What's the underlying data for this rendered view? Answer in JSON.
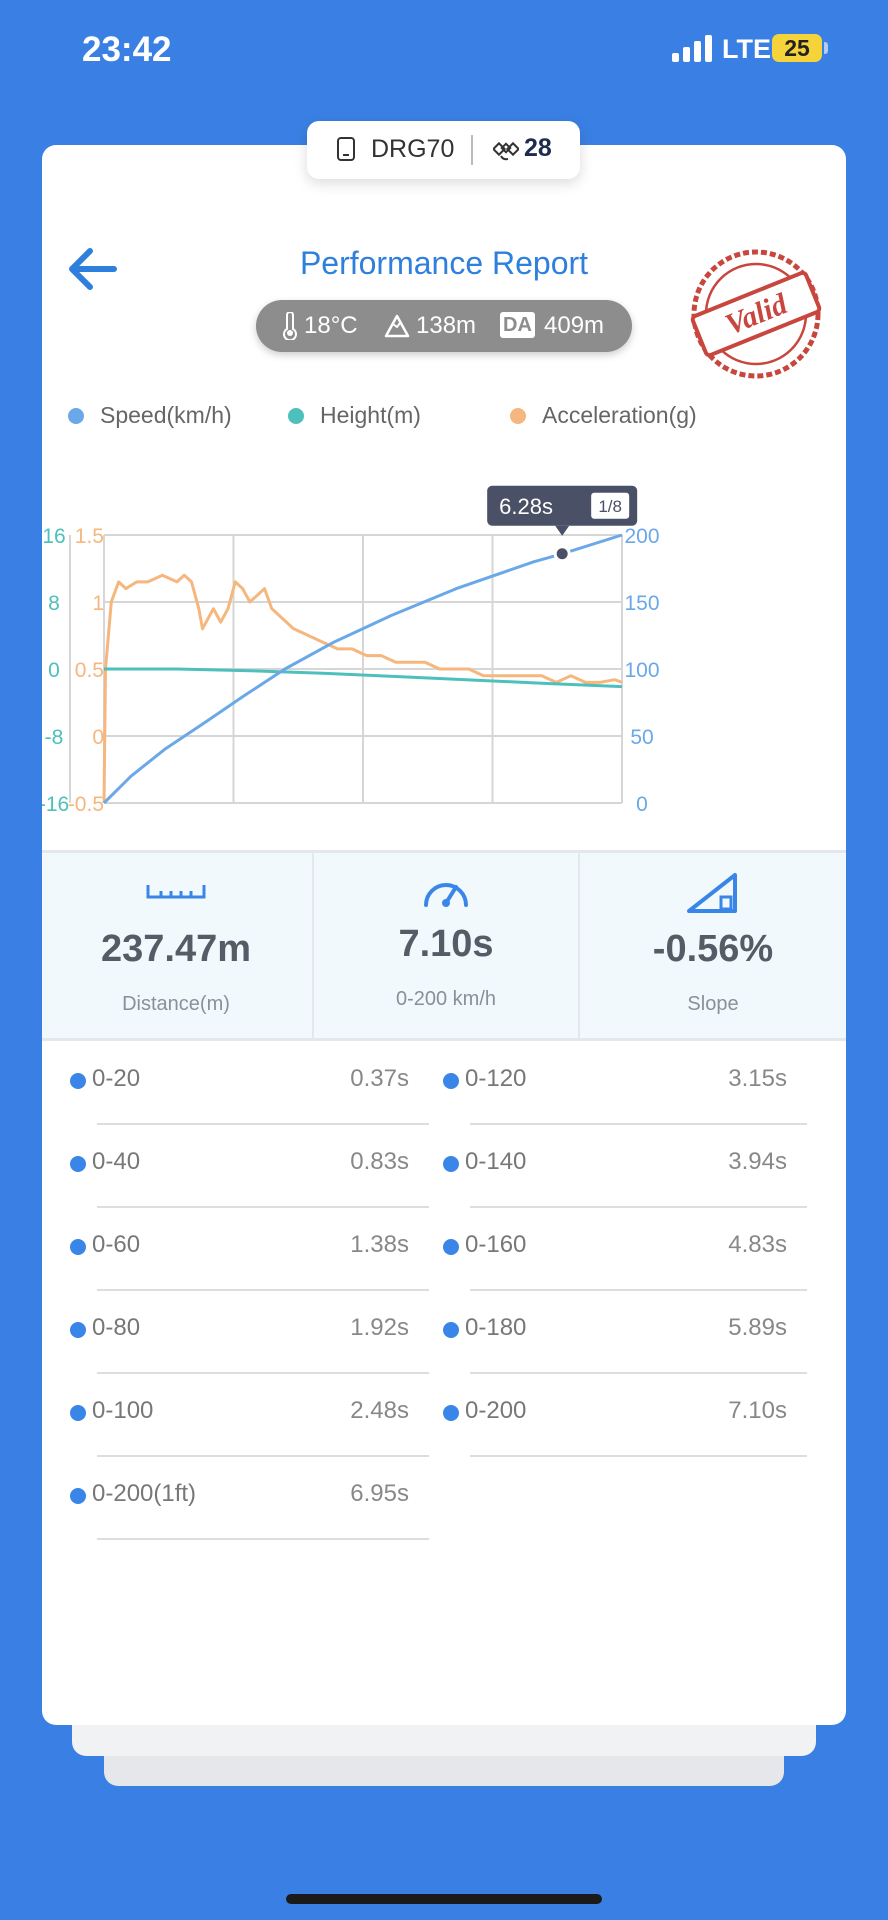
{
  "status_bar": {
    "time": "23:42",
    "network": "LTE",
    "battery": "25"
  },
  "device": {
    "name": "DRG70",
    "satellites": "28"
  },
  "header": {
    "title": "Performance Report",
    "stamp_text": "Valid"
  },
  "conditions": {
    "temperature": "18°C",
    "altitude": "138m",
    "da_label": "DA",
    "density_altitude": "409m"
  },
  "colors": {
    "speed": "#6aa8e8",
    "height": "#4dc0bd",
    "acceleration": "#f5b77d",
    "accent": "#2f7fdc",
    "stamp": "#c8463e"
  },
  "chart_data": {
    "type": "line",
    "legend": [
      "Speed(km/h)",
      "Height(m)",
      "Acceleration(g)"
    ],
    "legend_position": "top",
    "grid": true,
    "x_range": [
      0,
      7.1
    ],
    "axes": {
      "speed": {
        "range": [
          0,
          200
        ],
        "ticks": [
          "200",
          "150",
          "100",
          "50",
          "0"
        ]
      },
      "acceleration": {
        "range": [
          -0.5,
          1.5
        ],
        "ticks": [
          "1.5",
          "1",
          "0.5",
          "0",
          "-0.5"
        ]
      },
      "height": {
        "range": [
          -16,
          16
        ],
        "ticks": [
          "16",
          "8",
          "0",
          "-8",
          "-16"
        ]
      }
    },
    "series": [
      {
        "name": "Speed(km/h)",
        "axis": "speed",
        "x": [
          0,
          0.37,
          0.83,
          1.38,
          1.92,
          2.48,
          3.15,
          3.94,
          4.83,
          5.89,
          6.28,
          7.1
        ],
        "y": [
          0,
          20,
          40,
          60,
          80,
          100,
          120,
          140,
          160,
          180,
          186,
          200
        ]
      },
      {
        "name": "Height(m)",
        "axis": "height",
        "x": [
          0,
          1.0,
          2.0,
          3.0,
          4.0,
          5.0,
          6.0,
          7.1
        ],
        "y": [
          0,
          0,
          -0.2,
          -0.5,
          -0.9,
          -1.3,
          -1.7,
          -2.1
        ]
      },
      {
        "name": "Acceleration(g)",
        "axis": "acceleration",
        "x": [
          0,
          0.02,
          0.1,
          0.2,
          0.3,
          0.45,
          0.6,
          0.8,
          1.0,
          1.1,
          1.2,
          1.3,
          1.35,
          1.5,
          1.6,
          1.7,
          1.8,
          1.9,
          2.0,
          2.1,
          2.2,
          2.3,
          2.4,
          2.5,
          2.6,
          2.8,
          3.0,
          3.2,
          3.4,
          3.6,
          3.8,
          4.0,
          4.2,
          4.4,
          4.6,
          4.8,
          5.0,
          5.2,
          5.4,
          5.6,
          5.8,
          6.0,
          6.2,
          6.4,
          6.6,
          6.8,
          7.0,
          7.1
        ],
        "y": [
          -0.5,
          0.5,
          1.0,
          1.15,
          1.1,
          1.15,
          1.15,
          1.2,
          1.15,
          1.2,
          1.15,
          0.95,
          0.8,
          0.95,
          0.85,
          0.95,
          1.15,
          1.1,
          1.0,
          1.05,
          1.1,
          0.95,
          0.9,
          0.85,
          0.8,
          0.75,
          0.7,
          0.65,
          0.65,
          0.6,
          0.6,
          0.55,
          0.55,
          0.55,
          0.5,
          0.5,
          0.5,
          0.45,
          0.45,
          0.45,
          0.45,
          0.45,
          0.4,
          0.45,
          0.4,
          0.4,
          0.42,
          0.4
        ]
      }
    ],
    "marker": {
      "x": 6.28,
      "y": 186,
      "label": "6.28s",
      "page": "1/8"
    }
  },
  "stats": [
    {
      "value": "237.47m",
      "label": "Distance(m)",
      "icon": "ruler-icon"
    },
    {
      "value": "7.10s",
      "label": "0-200 km/h",
      "icon": "speedometer-icon"
    },
    {
      "value": "-0.56%",
      "label": "Slope",
      "icon": "slope-icon"
    }
  ],
  "splits": [
    {
      "label": "0-20",
      "time": "0.37s"
    },
    {
      "label": "0-120",
      "time": "3.15s"
    },
    {
      "label": "0-40",
      "time": "0.83s"
    },
    {
      "label": "0-140",
      "time": "3.94s"
    },
    {
      "label": "0-60",
      "time": "1.38s"
    },
    {
      "label": "0-160",
      "time": "4.83s"
    },
    {
      "label": "0-80",
      "time": "1.92s"
    },
    {
      "label": "0-180",
      "time": "5.89s"
    },
    {
      "label": "0-100",
      "time": "2.48s"
    },
    {
      "label": "0-200",
      "time": "7.10s"
    },
    {
      "label": "0-200(1ft)",
      "time": "6.95s"
    }
  ]
}
